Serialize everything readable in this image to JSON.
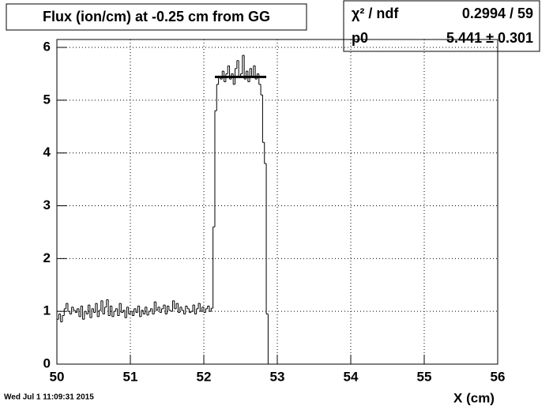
{
  "chart_data": {
    "type": "histogram",
    "title": "Flux (ion/cm) at -0.25 cm from GG",
    "x_label": "X (cm)",
    "timestamp": "Wed Jul  1 11:09:31 2015",
    "color": "#000000",
    "grid": true,
    "xlim": [
      50,
      56
    ],
    "xticks": [
      50,
      51,
      52,
      53,
      54,
      55,
      56
    ],
    "ylim": [
      0,
      6.15
    ],
    "yticks": [
      0,
      1,
      2,
      3,
      4,
      5,
      6
    ],
    "bins": [
      50,
      50.025,
      50.05,
      50.075,
      50.1,
      50.125,
      50.15,
      50.175,
      50.2,
      50.225,
      50.25,
      50.275,
      50.3,
      50.325,
      50.35,
      50.375,
      50.4,
      50.425,
      50.45,
      50.475,
      50.5,
      50.525,
      50.55,
      50.575,
      50.6,
      50.625,
      50.65,
      50.675,
      50.7,
      50.725,
      50.75,
      50.775,
      50.8,
      50.825,
      50.85,
      50.875,
      50.9,
      50.925,
      50.95,
      50.975,
      51,
      51.025,
      51.05,
      51.075,
      51.1,
      51.125,
      51.15,
      51.175,
      51.2,
      51.225,
      51.25,
      51.275,
      51.3,
      51.325,
      51.35,
      51.375,
      51.4,
      51.425,
      51.45,
      51.475,
      51.5,
      51.525,
      51.55,
      51.575,
      51.6,
      51.625,
      51.65,
      51.675,
      51.7,
      51.725,
      51.75,
      51.775,
      51.8,
      51.825,
      51.85,
      51.875,
      51.9,
      51.925,
      51.95,
      51.975,
      52,
      52.025,
      52.05,
      52.075,
      52.1,
      52.125,
      52.15,
      52.175,
      52.2,
      52.225,
      52.25,
      52.275,
      52.3,
      52.325,
      52.35,
      52.375,
      52.4,
      52.425,
      52.45,
      52.475,
      52.5,
      52.525,
      52.55,
      52.575,
      52.6,
      52.625,
      52.65,
      52.675,
      52.7,
      52.725,
      52.75,
      52.775,
      52.8,
      52.825,
      52.85,
      52.875,
      52.9
    ],
    "values": [
      0.85,
      0.95,
      0.8,
      0.92,
      1.05,
      1.15,
      1.0,
      0.95,
      1.08,
      1.02,
      0.98,
      1.05,
      0.9,
      1.1,
      0.85,
      1.0,
      0.95,
      1.12,
      0.88,
      1.05,
      0.98,
      1.15,
      0.9,
      1.02,
      1.2,
      0.95,
      1.08,
      1.22,
      0.92,
      1.1,
      0.9,
      1.0,
      1.05,
      0.92,
      1.15,
      0.98,
      1.02,
      0.88,
      1.08,
      0.95,
      1.0,
      0.92,
      1.05,
      0.98,
      1.1,
      0.9,
      1.02,
      0.95,
      1.08,
      0.93,
      1.0,
      1.05,
      0.95,
      1.18,
      1.02,
      1.08,
      0.98,
      1.05,
      1.12,
      0.95,
      1.1,
      1.02,
      1.0,
      1.2,
      1.05,
      1.15,
      0.98,
      1.08,
      1.02,
      0.95,
      1.1,
      1.05,
      0.98,
      1.0,
      1.12,
      0.95,
      1.05,
      1.15,
      1.0,
      1.08,
      0.98,
      1.05,
      1.1,
      1.0,
      1.06,
      2.6,
      4.8,
      5.3,
      5.45,
      5.4,
      5.55,
      5.35,
      5.5,
      5.65,
      5.4,
      5.5,
      5.3,
      5.6,
      5.75,
      5.45,
      5.5,
      5.85,
      5.4,
      5.55,
      5.35,
      5.6,
      5.45,
      5.65,
      5.4,
      5.5,
      5.3,
      5.1,
      4.2,
      3.8,
      0.95,
      0
    ],
    "fit": {
      "p0": 5.441,
      "range": [
        52.15,
        52.85
      ]
    },
    "stats": {
      "chi2_label": "χ² / ndf",
      "chi2_value": "0.2994 / 59",
      "p0_label": "p0",
      "p0_value": "5.441 ± 0.301"
    }
  }
}
